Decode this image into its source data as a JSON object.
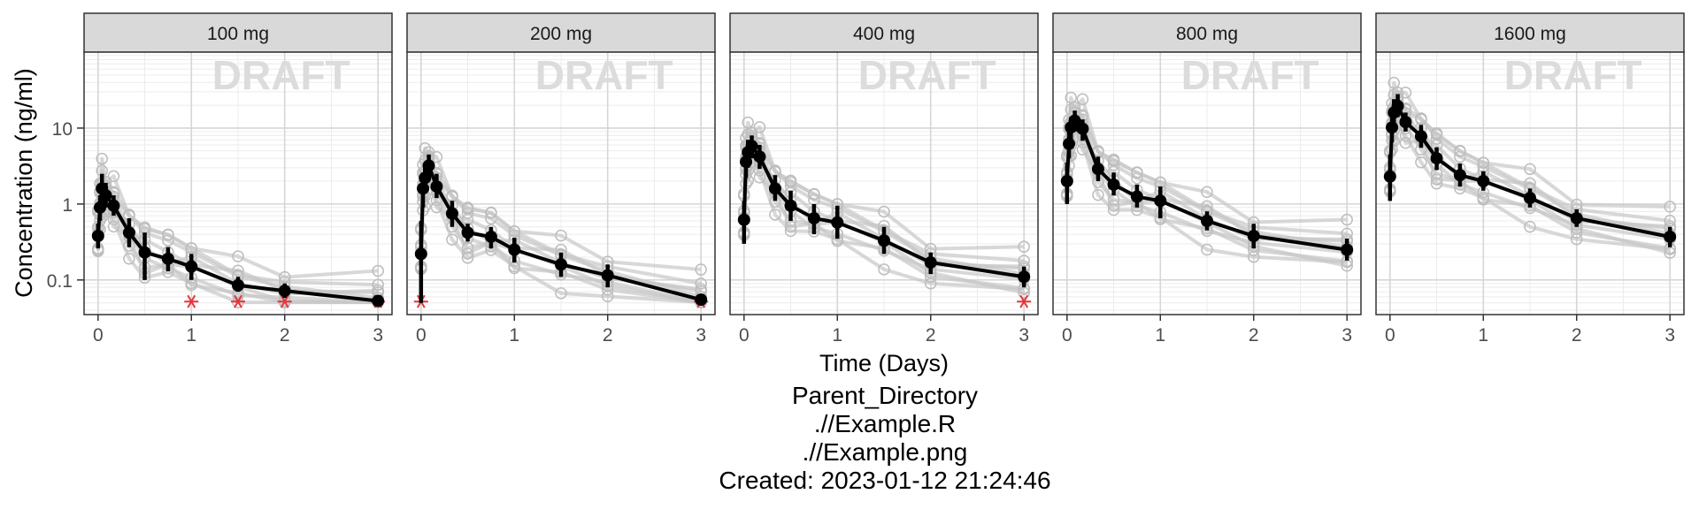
{
  "chart_data": {
    "type": "line",
    "ylabel": "Concentration (ng/ml)",
    "xlabel": "Time (Days)",
    "yscale": "log10",
    "ylim": [
      0.035,
      100
    ],
    "xlim": [
      -0.15,
      3.15
    ],
    "yticks": [
      {
        "value": 0.1,
        "label": "0.1"
      },
      {
        "value": 1,
        "label": "1"
      },
      {
        "value": 10,
        "label": "10"
      }
    ],
    "xticks": [
      {
        "value": 0,
        "label": "0"
      },
      {
        "value": 1,
        "label": "1"
      },
      {
        "value": 2,
        "label": "2"
      },
      {
        "value": 3,
        "label": "3"
      }
    ],
    "grid": true,
    "watermark": "DRAFT",
    "panels": [
      {
        "label": "100 mg",
        "mean": {
          "x": [
            0,
            0.021,
            0.042,
            0.083,
            0.167,
            0.333,
            0.5,
            0.75,
            1,
            1.5,
            2,
            3
          ],
          "y": [
            0.38,
            0.9,
            1.6,
            1.3,
            0.95,
            0.42,
            0.23,
            0.19,
            0.15,
            0.085,
            0.072,
            0.053
          ],
          "lo": [
            0.26,
            0.6,
            1.0,
            0.9,
            0.7,
            0.27,
            0.1,
            0.13,
            0.1,
            0.07,
            0.058,
            0.05
          ],
          "hi": [
            0.55,
            1.3,
            2.5,
            1.9,
            1.3,
            0.65,
            0.42,
            0.27,
            0.22,
            0.11,
            0.09,
            0.058
          ]
        },
        "blq": {
          "x": [
            1,
            1.5,
            2,
            3
          ],
          "y": [
            0.052,
            0.052,
            0.052,
            0.052
          ]
        }
      },
      {
        "label": "200 mg",
        "mean": {
          "x": [
            0,
            0.021,
            0.042,
            0.083,
            0.167,
            0.333,
            0.5,
            0.75,
            1,
            1.5,
            2,
            3
          ],
          "y": [
            0.22,
            1.6,
            2.2,
            3.2,
            1.7,
            0.75,
            0.42,
            0.37,
            0.25,
            0.16,
            0.115,
            0.055
          ],
          "lo": [
            0.05,
            0.9,
            1.4,
            2.1,
            1.2,
            0.5,
            0.32,
            0.26,
            0.17,
            0.11,
            0.08,
            0.05
          ],
          "hi": [
            0.6,
            2.6,
            3.3,
            4.5,
            2.5,
            1.1,
            0.55,
            0.5,
            0.36,
            0.23,
            0.16,
            0.06
          ]
        },
        "blq": {
          "x": [
            0,
            3
          ],
          "y": [
            0.052,
            0.052
          ]
        }
      },
      {
        "label": "400 mg",
        "mean": {
          "x": [
            0,
            0.021,
            0.042,
            0.083,
            0.167,
            0.333,
            0.5,
            0.75,
            1,
            1.5,
            2,
            3
          ],
          "y": [
            0.62,
            3.6,
            4.8,
            5.8,
            4.2,
            1.6,
            0.95,
            0.65,
            0.57,
            0.33,
            0.17,
            0.11
          ],
          "lo": [
            0.3,
            2.2,
            3.0,
            4.0,
            2.9,
            1.1,
            0.6,
            0.4,
            0.35,
            0.22,
            0.12,
            0.08
          ],
          "hi": [
            1.1,
            5.2,
            7.0,
            8.0,
            6.0,
            2.4,
            1.5,
            1.0,
            0.95,
            0.5,
            0.23,
            0.15
          ]
        },
        "blq": {
          "x": [
            3
          ],
          "y": [
            0.052
          ]
        }
      },
      {
        "label": "800 mg",
        "mean": {
          "x": [
            0,
            0.021,
            0.042,
            0.083,
            0.167,
            0.333,
            0.5,
            0.75,
            1,
            1.5,
            2,
            3
          ],
          "y": [
            2.0,
            6.2,
            10.2,
            12.5,
            9.8,
            2.9,
            1.8,
            1.25,
            1.1,
            0.6,
            0.38,
            0.25
          ],
          "lo": [
            1.0,
            4.0,
            7.0,
            9.0,
            6.8,
            2.0,
            1.3,
            0.9,
            0.65,
            0.45,
            0.26,
            0.18
          ],
          "hi": [
            3.5,
            9.0,
            14.0,
            17.0,
            13.0,
            4.2,
            2.6,
            1.8,
            1.7,
            0.8,
            0.55,
            0.35
          ]
        },
        "blq": {
          "x": [],
          "y": []
        }
      },
      {
        "label": "1600 mg",
        "mean": {
          "x": [
            0,
            0.021,
            0.042,
            0.083,
            0.167,
            0.333,
            0.5,
            0.75,
            1,
            1.5,
            2,
            3
          ],
          "y": [
            2.3,
            10.2,
            16.0,
            19.5,
            12.0,
            7.8,
            4.0,
            2.4,
            2.0,
            1.2,
            0.65,
            0.37
          ],
          "lo": [
            1.1,
            6.5,
            11.0,
            14.0,
            9.0,
            5.5,
            2.8,
            1.7,
            1.5,
            0.9,
            0.5,
            0.27
          ],
          "hi": [
            4.5,
            15.0,
            24.0,
            28.0,
            16.0,
            11.0,
            5.6,
            3.4,
            2.7,
            1.6,
            0.85,
            0.5
          ]
        },
        "blq": {
          "x": [],
          "y": []
        }
      }
    ]
  },
  "caption": {
    "line1": "Parent_Directory",
    "line2": ".//Example.R",
    "line3": ".//Example.png",
    "line4": "Created: 2023-01-12 21:24:46"
  }
}
